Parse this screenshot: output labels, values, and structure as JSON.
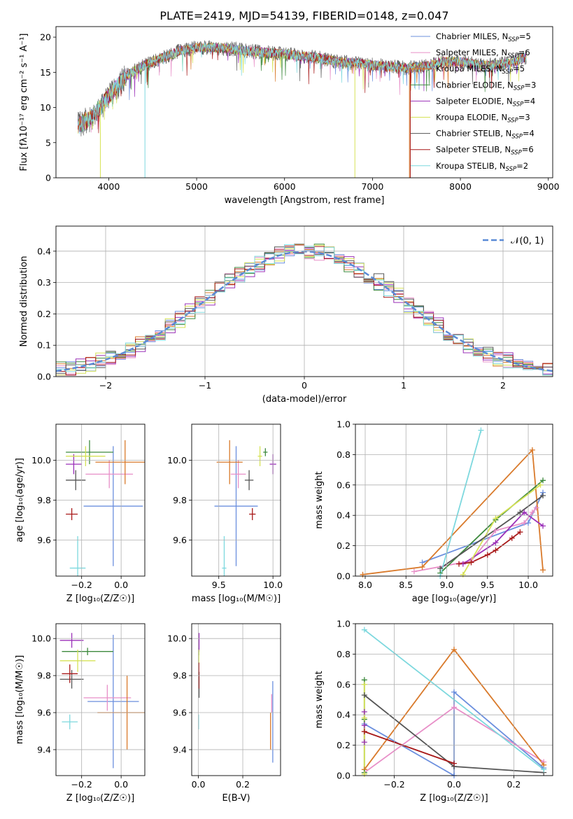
{
  "colors": {
    "Chabrier MILES": "#6b8fde",
    "Salpeter MILES": "#e88fc8",
    "Kroupa MILES": "#d97a2b",
    "Chabrier ELODIE": "#3d8a3d",
    "Salpeter ELODIE": "#9b30b8",
    "Kroupa ELODIE": "#d6e256",
    "Chabrier STELIB": "#555555",
    "Salpeter STELIB": "#a81919",
    "Kroupa STELIB": "#7dd8de",
    "gaussian": "#5a8ad6"
  },
  "chart_data": [
    {
      "id": "spectrum",
      "type": "line",
      "title": "PLATE=2419, MJD=54139, FIBERID=0148, z=0.047",
      "xlabel": "wavelength [Angstrom, rest frame]",
      "ylabel": "Flux [fλ10⁻¹⁷ erg cm⁻² s⁻¹ A⁻¹]",
      "xlim": [
        3400,
        9050
      ],
      "ylim": [
        0,
        21.5
      ],
      "xticks": [
        "4000",
        "5000",
        "6000",
        "7000",
        "8000",
        "9000"
      ],
      "yticks": [
        "0",
        "5",
        "10",
        "15",
        "20"
      ],
      "legend_position": "top-right",
      "legend": [
        {
          "model": "Chabrier MILES",
          "nssp": "5"
        },
        {
          "model": "Salpeter MILES",
          "nssp": "6"
        },
        {
          "model": "Kroupa MILES",
          "nssp": "5"
        },
        {
          "model": "Chabrier ELODIE",
          "nssp": "3"
        },
        {
          "model": "Salpeter ELODIE",
          "nssp": "4"
        },
        {
          "model": "Kroupa ELODIE",
          "nssp": "3"
        },
        {
          "model": "Chabrier STELIB",
          "nssp": "4"
        },
        {
          "model": "Salpeter STELIB",
          "nssp": "6"
        },
        {
          "model": "Kroupa STELIB",
          "nssp": "2"
        }
      ],
      "continuum": {
        "x": [
          3650,
          3800,
          3900,
          4000,
          4100,
          4200,
          4400,
          4600,
          4800,
          5000,
          5200,
          5400,
          5600,
          5800,
          6000,
          6200,
          6400,
          6600,
          6800,
          7000,
          7200,
          7400,
          7600,
          7800,
          8000,
          8200,
          8400,
          8600,
          8750
        ],
        "y": [
          7.5,
          8.5,
          10.0,
          11.5,
          13.0,
          14.5,
          16.0,
          17.0,
          18.0,
          18.5,
          18.5,
          18.3,
          18.0,
          17.8,
          17.6,
          17.3,
          17.0,
          16.5,
          16.3,
          16.0,
          15.8,
          15.6,
          15.8,
          16.5,
          16.5,
          16.0,
          16.0,
          16.5,
          17.2
        ]
      }
    },
    {
      "id": "residuals",
      "type": "histogram",
      "xlabel": "(data-model)/error",
      "ylabel": "Normed distribution",
      "xlim": [
        -2.5,
        2.5
      ],
      "ylim": [
        0,
        0.48
      ],
      "xticks": [
        "−2",
        "−1",
        "0",
        "1",
        "2"
      ],
      "yticks": [
        "0.0",
        "0.1",
        "0.2",
        "0.3",
        "0.4"
      ],
      "grid": true,
      "legend_position": "top-right",
      "legend_label": "𝒩(0, 1)",
      "bin_width": 0.1,
      "peak": 0.4
    },
    {
      "id": "age-vs-Z",
      "type": "errorbar",
      "xlabel": "Z [log₁₀(Z/Z☉)]",
      "ylabel": "age  [log₁₀(age/yr)]",
      "xlim": [
        -0.33,
        0.12
      ],
      "ylim": [
        9.42,
        10.18
      ],
      "xticks": [
        "−0.2",
        "0.0"
      ],
      "yticks": [
        "9.6",
        "9.8",
        "10.0"
      ],
      "grid": true,
      "points": [
        {
          "model": "Chabrier MILES",
          "x": -0.04,
          "xerr": 0.15,
          "y": 9.77,
          "yerr": 0.3
        },
        {
          "model": "Salpeter MILES",
          "x": -0.06,
          "xerr": 0.12,
          "y": 9.93,
          "yerr": 0.07
        },
        {
          "model": "Kroupa MILES",
          "x": 0.02,
          "xerr": 0.15,
          "y": 9.99,
          "yerr": 0.11
        },
        {
          "model": "Chabrier ELODIE",
          "x": -0.16,
          "xerr": 0.12,
          "y": 10.04,
          "yerr": 0.06
        },
        {
          "model": "Salpeter ELODIE",
          "x": -0.24,
          "xerr": 0.04,
          "y": 9.98,
          "yerr": 0.05
        },
        {
          "model": "Kroupa ELODIE",
          "x": -0.18,
          "xerr": 0.1,
          "y": 10.02,
          "yerr": 0.05
        },
        {
          "model": "Chabrier STELIB",
          "x": -0.23,
          "xerr": 0.05,
          "y": 9.9,
          "yerr": 0.05
        },
        {
          "model": "Salpeter STELIB",
          "x": -0.25,
          "xerr": 0.03,
          "y": 9.73,
          "yerr": 0.03
        },
        {
          "model": "Kroupa STELIB",
          "x": -0.22,
          "xerr": 0.04,
          "y": 9.46,
          "yerr": 0.16
        }
      ]
    },
    {
      "id": "age-vs-mass",
      "type": "errorbar",
      "xlabel": "mass [log₁₀(M/M☉)]",
      "ylabel": "",
      "xlim": [
        9.25,
        10.07
      ],
      "ylim": [
        9.42,
        10.18
      ],
      "xticks": [
        "9.5",
        "10.0"
      ],
      "yticks": [
        "9.6",
        "9.8",
        "10.0"
      ],
      "grid": true,
      "points": [
        {
          "model": "Chabrier MILES",
          "x": 9.66,
          "xerr": 0.2,
          "y": 9.77,
          "yerr": 0.3
        },
        {
          "model": "Salpeter MILES",
          "x": 9.68,
          "xerr": 0.07,
          "y": 9.93,
          "yerr": 0.07
        },
        {
          "model": "Kroupa MILES",
          "x": 9.6,
          "xerr": 0.12,
          "y": 9.99,
          "yerr": 0.11
        },
        {
          "model": "Chabrier ELODIE",
          "x": 9.93,
          "xerr": 0.02,
          "y": 10.04,
          "yerr": 0.02
        },
        {
          "model": "Salpeter ELODIE",
          "x": 10.0,
          "xerr": 0.03,
          "y": 9.98,
          "yerr": 0.05
        },
        {
          "model": "Kroupa ELODIE",
          "x": 9.88,
          "xerr": 0.02,
          "y": 10.02,
          "yerr": 0.05
        },
        {
          "model": "Chabrier STELIB",
          "x": 9.78,
          "xerr": 0.04,
          "y": 9.9,
          "yerr": 0.05
        },
        {
          "model": "Salpeter STELIB",
          "x": 9.81,
          "xerr": 0.03,
          "y": 9.73,
          "yerr": 0.03
        },
        {
          "model": "Kroupa STELIB",
          "x": 9.55,
          "xerr": 0.02,
          "y": 9.46,
          "yerr": 0.16
        }
      ]
    },
    {
      "id": "mass-weight-vs-age",
      "type": "line",
      "xlabel": "age  [log₁₀(age/yr)]",
      "ylabel": "mass weight",
      "xlim": [
        7.88,
        10.3
      ],
      "ylim": [
        0,
        1
      ],
      "xticks": [
        "8.0",
        "8.5",
        "9.0",
        "9.5",
        "10.0"
      ],
      "yticks": [
        "0.0",
        "0.2",
        "0.4",
        "0.6",
        "0.8",
        "1.0"
      ],
      "grid": true,
      "series": [
        {
          "model": "Chabrier MILES",
          "x": [
            8.7,
            10.0,
            10.18
          ],
          "y": [
            0.09,
            0.35,
            0.55
          ]
        },
        {
          "model": "Salpeter MILES",
          "x": [
            8.6,
            9.3,
            9.6,
            9.95,
            10.05,
            10.1
          ],
          "y": [
            0.03,
            0.1,
            0.3,
            0.35,
            0.42,
            0.45
          ]
        },
        {
          "model": "Kroupa MILES",
          "x": [
            7.97,
            8.7,
            10.05,
            10.18
          ],
          "y": [
            0.01,
            0.06,
            0.83,
            0.04
          ]
        },
        {
          "model": "Chabrier ELODIE",
          "x": [
            8.92,
            9.6,
            10.18
          ],
          "y": [
            0.02,
            0.37,
            0.63
          ]
        },
        {
          "model": "Salpeter ELODIE",
          "x": [
            9.2,
            9.6,
            9.95,
            10.18
          ],
          "y": [
            0.08,
            0.22,
            0.42,
            0.33
          ]
        },
        {
          "model": "Kroupa ELODIE",
          "x": [
            9.2,
            9.6,
            10.15
          ],
          "y": [
            0.01,
            0.38,
            0.6
          ]
        },
        {
          "model": "Chabrier STELIB",
          "x": [
            8.92,
            9.9,
            10.18
          ],
          "y": [
            0.05,
            0.42,
            0.53
          ]
        },
        {
          "model": "Salpeter STELIB",
          "x": [
            9.15,
            9.3,
            9.5,
            9.6,
            9.8,
            9.9
          ],
          "y": [
            0.08,
            0.09,
            0.14,
            0.17,
            0.25,
            0.29
          ]
        },
        {
          "model": "Kroupa STELIB",
          "x": [
            8.92,
            9.42
          ],
          "y": [
            0.0,
            0.96
          ]
        }
      ]
    },
    {
      "id": "mass-vs-Z",
      "type": "errorbar",
      "xlabel": "Z [log₁₀(Z/Z☉)]",
      "ylabel": "mass [log₁₀(M/M☉)]",
      "xlim": [
        -0.33,
        0.12
      ],
      "ylim": [
        9.26,
        10.08
      ],
      "xticks": [
        "−0.2",
        "0.0"
      ],
      "yticks": [
        "9.4",
        "9.6",
        "9.8",
        "10.0"
      ],
      "grid": true,
      "points": [
        {
          "model": "Chabrier MILES",
          "x": -0.04,
          "xerr": 0.13,
          "y": 9.66,
          "yerr": 0.36
        },
        {
          "model": "Salpeter MILES",
          "x": -0.07,
          "xerr": 0.12,
          "y": 9.68,
          "yerr": 0.07
        },
        {
          "model": "Kroupa MILES",
          "x": 0.03,
          "xerr": 0.15,
          "y": 9.6,
          "yerr": 0.2
        },
        {
          "model": "Chabrier ELODIE",
          "x": -0.17,
          "xerr": 0.13,
          "y": 9.93,
          "yerr": 0.02
        },
        {
          "model": "Salpeter ELODIE",
          "x": -0.25,
          "xerr": 0.06,
          "y": 9.99,
          "yerr": 0.04
        },
        {
          "model": "Kroupa ELODIE",
          "x": -0.22,
          "xerr": 0.09,
          "y": 9.88,
          "yerr": 0.06
        },
        {
          "model": "Chabrier STELIB",
          "x": -0.25,
          "xerr": 0.06,
          "y": 9.78,
          "yerr": 0.05
        },
        {
          "model": "Salpeter STELIB",
          "x": -0.26,
          "xerr": 0.04,
          "y": 9.81,
          "yerr": 0.05
        },
        {
          "model": "Kroupa STELIB",
          "x": -0.26,
          "xerr": 0.04,
          "y": 9.55,
          "yerr": 0.04
        }
      ]
    },
    {
      "id": "mass-vs-ebv",
      "type": "errorbar",
      "xlabel": "E(B-V)",
      "ylabel": "",
      "xlim": [
        -0.03,
        0.37
      ],
      "ylim": [
        9.26,
        10.08
      ],
      "xticks": [
        "0.0",
        "0.2"
      ],
      "yticks": [
        "9.4",
        "9.6",
        "9.8",
        "10.0"
      ],
      "grid": true,
      "points": [
        {
          "model": "Chabrier MILES",
          "x": 0.335,
          "xerr": 0.0,
          "y": 9.55,
          "yerr": 0.22
        },
        {
          "model": "Salpeter MILES",
          "x": 0.33,
          "xerr": 0.0,
          "y": 9.65,
          "yerr": 0.05
        },
        {
          "model": "Kroupa MILES",
          "x": 0.325,
          "xerr": 0.0,
          "y": 9.5,
          "yerr": 0.1
        },
        {
          "model": "Chabrier ELODIE",
          "x": 0.002,
          "xerr": 0.0,
          "y": 9.93,
          "yerr": 0.02
        },
        {
          "model": "Salpeter ELODIE",
          "x": 0.003,
          "xerr": 0.0,
          "y": 9.98,
          "yerr": 0.05
        },
        {
          "model": "Kroupa ELODIE",
          "x": 0.002,
          "xerr": 0.0,
          "y": 9.9,
          "yerr": 0.04
        },
        {
          "model": "Chabrier STELIB",
          "x": 0.003,
          "xerr": 0.0,
          "y": 9.75,
          "yerr": 0.07
        },
        {
          "model": "Salpeter STELIB",
          "x": 0.002,
          "xerr": 0.0,
          "y": 9.8,
          "yerr": 0.07
        },
        {
          "model": "Kroupa STELIB",
          "x": 0.001,
          "xerr": 0.0,
          "y": 9.55,
          "yerr": 0.04
        }
      ]
    },
    {
      "id": "mass-weight-vs-Z",
      "type": "line",
      "xlabel": "Z [log₁₀(Z/Z☉)]",
      "ylabel": "mass weight",
      "xlim": [
        -0.33,
        0.33
      ],
      "ylim": [
        0,
        1
      ],
      "xticks": [
        "−0.2",
        "0.0",
        "0.2"
      ],
      "yticks": [
        "0.0",
        "0.2",
        "0.4",
        "0.6",
        "0.8",
        "1.0"
      ],
      "grid": true,
      "series": [
        {
          "model": "Chabrier MILES",
          "x": [
            -0.3,
            0.0,
            0.0,
            0.3
          ],
          "y": [
            0.34,
            0.0,
            0.55,
            0.05
          ]
        },
        {
          "model": "Salpeter MILES",
          "x": [
            -0.3,
            0.0,
            0.3
          ],
          "y": [
            0.02,
            0.45,
            0.09
          ]
        },
        {
          "model": "Kroupa MILES",
          "x": [
            -0.3,
            0.0,
            0.3
          ],
          "y": [
            0.04,
            0.83,
            0.07
          ]
        },
        {
          "model": "Chabrier ELODIE",
          "x": [
            -0.3,
            -0.3,
            -0.3
          ],
          "y": [
            0.63,
            0.37,
            0.02
          ]
        },
        {
          "model": "Salpeter ELODIE",
          "x": [
            -0.3,
            -0.3,
            -0.3
          ],
          "y": [
            0.42,
            0.33,
            0.22
          ]
        },
        {
          "model": "Kroupa ELODIE",
          "x": [
            -0.3,
            -0.3,
            -0.3
          ],
          "y": [
            0.6,
            0.38,
            0.01
          ]
        },
        {
          "model": "Chabrier STELIB",
          "x": [
            -0.3,
            0.0,
            0.3
          ],
          "y": [
            0.53,
            0.06,
            0.02
          ]
        },
        {
          "model": "Salpeter STELIB",
          "x": [
            -0.3,
            0.0
          ],
          "y": [
            0.29,
            0.08
          ]
        },
        {
          "model": "Kroupa STELIB",
          "x": [
            -0.3,
            0.3
          ],
          "y": [
            0.96,
            0.04
          ]
        }
      ]
    }
  ]
}
